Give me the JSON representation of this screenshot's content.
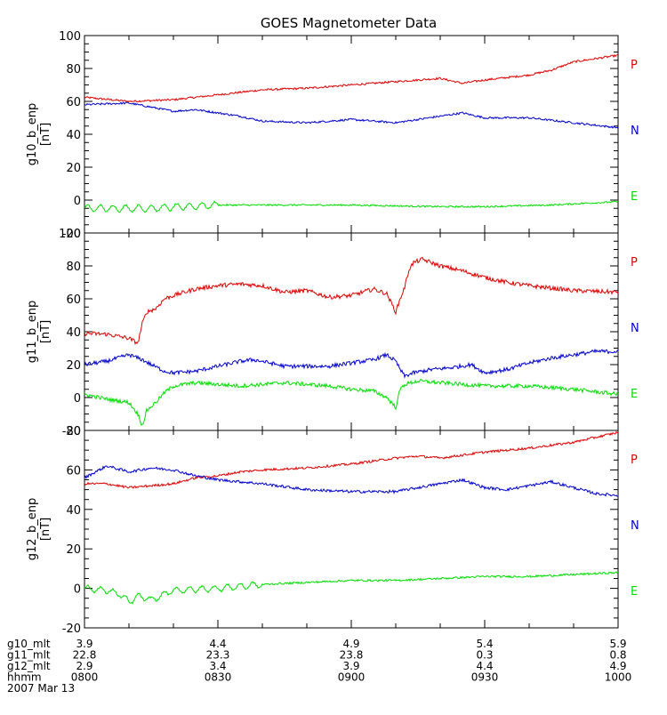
{
  "chart_data": {
    "type": "line",
    "title": "GOES Magnetometer Data",
    "colors": {
      "P": "#dd0000",
      "N": "#0000cc",
      "E": "#00dd00",
      "axis": "#000000"
    },
    "x": {
      "range_minutes": [
        0,
        120
      ],
      "tick_minutes": [
        0,
        30,
        60,
        90,
        120
      ]
    },
    "panels": [
      {
        "ylabel": "g10_b_enp",
        "unit": "[nT]",
        "ylim": [
          -20,
          100
        ],
        "yticks": [
          -20,
          0,
          20,
          40,
          60,
          80,
          100
        ],
        "legend": [
          "P",
          "N",
          "E"
        ],
        "series": [
          {
            "name": "P",
            "noise": 0.6,
            "points": [
              [
                0,
                62.5
              ],
              [
                10,
                60
              ],
              [
                20,
                61
              ],
              [
                30,
                64
              ],
              [
                40,
                67
              ],
              [
                50,
                68
              ],
              [
                60,
                70
              ],
              [
                70,
                72
              ],
              [
                80,
                74
              ],
              [
                85,
                71
              ],
              [
                90,
                73
              ],
              [
                100,
                76
              ],
              [
                105,
                79
              ],
              [
                110,
                84
              ],
              [
                120,
                88
              ]
            ]
          },
          {
            "name": "N",
            "noise": 0.6,
            "points": [
              [
                0,
                58
              ],
              [
                10,
                59
              ],
              [
                20,
                54
              ],
              [
                25,
                55
              ],
              [
                35,
                51
              ],
              [
                40,
                48
              ],
              [
                50,
                47
              ],
              [
                60,
                49
              ],
              [
                70,
                47
              ],
              [
                80,
                51
              ],
              [
                85,
                53
              ],
              [
                90,
                50
              ],
              [
                100,
                50
              ],
              [
                110,
                47
              ],
              [
                120,
                44
              ]
            ]
          },
          {
            "name": "E",
            "noise": 0.5,
            "wave": [
              [
                0,
                30,
                2
              ]
            ],
            "points": [
              [
                0,
                -5
              ],
              [
                15,
                -5
              ],
              [
                30,
                -3
              ],
              [
                40,
                -3
              ],
              [
                60,
                -3
              ],
              [
                80,
                -4
              ],
              [
                90,
                -4
              ],
              [
                105,
                -3
              ],
              [
                112,
                -2
              ],
              [
                120,
                -1
              ]
            ]
          }
        ]
      },
      {
        "ylabel": "g11_b_enp",
        "unit": "[nT]",
        "ylim": [
          -20,
          100
        ],
        "yticks": [
          -20,
          0,
          20,
          40,
          60,
          80,
          100
        ],
        "legend": [
          "P",
          "N",
          "E"
        ],
        "series": [
          {
            "name": "P",
            "noise": 1.3,
            "points": [
              [
                0,
                39
              ],
              [
                5,
                38.5
              ],
              [
                10,
                36
              ],
              [
                12,
                33
              ],
              [
                13,
                45
              ],
              [
                14,
                52
              ],
              [
                16,
                54
              ],
              [
                18,
                60
              ],
              [
                20,
                62
              ],
              [
                25,
                66
              ],
              [
                30,
                68
              ],
              [
                35,
                69
              ],
              [
                40,
                68
              ],
              [
                45,
                64
              ],
              [
                50,
                65
              ],
              [
                55,
                61
              ],
              [
                60,
                62
              ],
              [
                65,
                66
              ],
              [
                68,
                63
              ],
              [
                70,
                52
              ],
              [
                71,
                60
              ],
              [
                72,
                67
              ],
              [
                73,
                78
              ],
              [
                74,
                82
              ],
              [
                76,
                84
              ],
              [
                80,
                80
              ],
              [
                85,
                77
              ],
              [
                90,
                73
              ],
              [
                95,
                70
              ],
              [
                100,
                68
              ],
              [
                110,
                65
              ],
              [
                120,
                64
              ]
            ]
          },
          {
            "name": "N",
            "noise": 1.2,
            "points": [
              [
                0,
                20
              ],
              [
                5,
                22
              ],
              [
                10,
                26
              ],
              [
                13,
                23
              ],
              [
                15,
                20
              ],
              [
                18,
                16
              ],
              [
                20,
                15
              ],
              [
                25,
                16
              ],
              [
                30,
                19
              ],
              [
                35,
                22
              ],
              [
                38,
                23
              ],
              [
                40,
                22
              ],
              [
                45,
                19
              ],
              [
                50,
                19
              ],
              [
                55,
                19
              ],
              [
                60,
                21
              ],
              [
                65,
                23
              ],
              [
                68,
                26
              ],
              [
                70,
                22
              ],
              [
                71,
                17
              ],
              [
                72,
                13
              ],
              [
                74,
                15
              ],
              [
                78,
                17
              ],
              [
                82,
                18
              ],
              [
                87,
                20
              ],
              [
                90,
                15
              ],
              [
                95,
                17
              ],
              [
                100,
                21
              ],
              [
                105,
                24
              ],
              [
                110,
                26
              ],
              [
                115,
                28
              ],
              [
                120,
                28
              ]
            ]
          },
          {
            "name": "E",
            "noise": 1.2,
            "points": [
              [
                0,
                2
              ],
              [
                5,
                -1
              ],
              [
                10,
                -3
              ],
              [
                12,
                -10
              ],
              [
                13,
                -17
              ],
              [
                14,
                -8
              ],
              [
                16,
                -3
              ],
              [
                18,
                3
              ],
              [
                20,
                7
              ],
              [
                25,
                9
              ],
              [
                30,
                8
              ],
              [
                35,
                7
              ],
              [
                40,
                8
              ],
              [
                45,
                9
              ],
              [
                50,
                8
              ],
              [
                55,
                7
              ],
              [
                60,
                5
              ],
              [
                65,
                4
              ],
              [
                68,
                0
              ],
              [
                70,
                -6
              ],
              [
                71,
                5
              ],
              [
                72,
                8
              ],
              [
                75,
                10
              ],
              [
                80,
                9
              ],
              [
                85,
                8
              ],
              [
                90,
                7
              ],
              [
                95,
                7
              ],
              [
                100,
                7
              ],
              [
                105,
                6
              ],
              [
                110,
                5
              ],
              [
                120,
                2
              ]
            ]
          }
        ]
      },
      {
        "ylabel": "g12_b_enp",
        "unit": "[nT]",
        "ylim": [
          -20,
          80
        ],
        "yticks": [
          -20,
          0,
          20,
          40,
          60,
          80
        ],
        "legend": [
          "P",
          "N",
          "E"
        ],
        "series": [
          {
            "name": "P",
            "noise": 0.6,
            "points": [
              [
                0,
                53
              ],
              [
                5,
                53
              ],
              [
                10,
                51
              ],
              [
                15,
                52
              ],
              [
                20,
                53
              ],
              [
                25,
                56
              ],
              [
                30,
                57
              ],
              [
                35,
                59
              ],
              [
                40,
                60
              ],
              [
                50,
                61
              ],
              [
                60,
                63
              ],
              [
                70,
                66
              ],
              [
                75,
                67
              ],
              [
                80,
                66
              ],
              [
                90,
                69
              ],
              [
                100,
                71
              ],
              [
                110,
                74
              ],
              [
                120,
                79
              ]
            ]
          },
          {
            "name": "N",
            "noise": 0.7,
            "points": [
              [
                0,
                56
              ],
              [
                5,
                62
              ],
              [
                10,
                59
              ],
              [
                15,
                61
              ],
              [
                20,
                60
              ],
              [
                25,
                57
              ],
              [
                30,
                55
              ],
              [
                40,
                53
              ],
              [
                50,
                50
              ],
              [
                60,
                49
              ],
              [
                70,
                49
              ],
              [
                80,
                53
              ],
              [
                85,
                55
              ],
              [
                90,
                51
              ],
              [
                95,
                50
              ],
              [
                100,
                52
              ],
              [
                105,
                54
              ],
              [
                110,
                51
              ],
              [
                115,
                48
              ],
              [
                120,
                47
              ]
            ]
          },
          {
            "name": "E",
            "noise": 0.5,
            "wave": [
              [
                0,
                40,
                1.5
              ]
            ],
            "points": [
              [
                0,
                0
              ],
              [
                5,
                -1
              ],
              [
                8,
                -3
              ],
              [
                10,
                -7
              ],
              [
                12,
                -4
              ],
              [
                14,
                -5
              ],
              [
                15,
                -6
              ],
              [
                20,
                -1
              ],
              [
                30,
                0
              ],
              [
                40,
                2
              ],
              [
                60,
                4
              ],
              [
                70,
                4
              ],
              [
                80,
                5
              ],
              [
                90,
                6
              ],
              [
                100,
                6
              ],
              [
                110,
                7
              ],
              [
                120,
                8
              ]
            ]
          }
        ]
      }
    ]
  },
  "footer": {
    "rows": [
      {
        "label": "g10_mlt",
        "values": [
          "3.9",
          "4.4",
          "4.9",
          "5.4",
          "5.9"
        ]
      },
      {
        "label": "g11_mlt",
        "values": [
          "22.8",
          "23.3",
          "23.8",
          "0.3",
          "0.8"
        ]
      },
      {
        "label": "g12_mlt",
        "values": [
          "2.9",
          "3.4",
          "3.9",
          "4.4",
          "4.9"
        ]
      },
      {
        "label": "hhmm",
        "values": [
          "0800",
          "0830",
          "0900",
          "0930",
          "1000"
        ]
      }
    ],
    "date": "2007 Mar 13"
  }
}
